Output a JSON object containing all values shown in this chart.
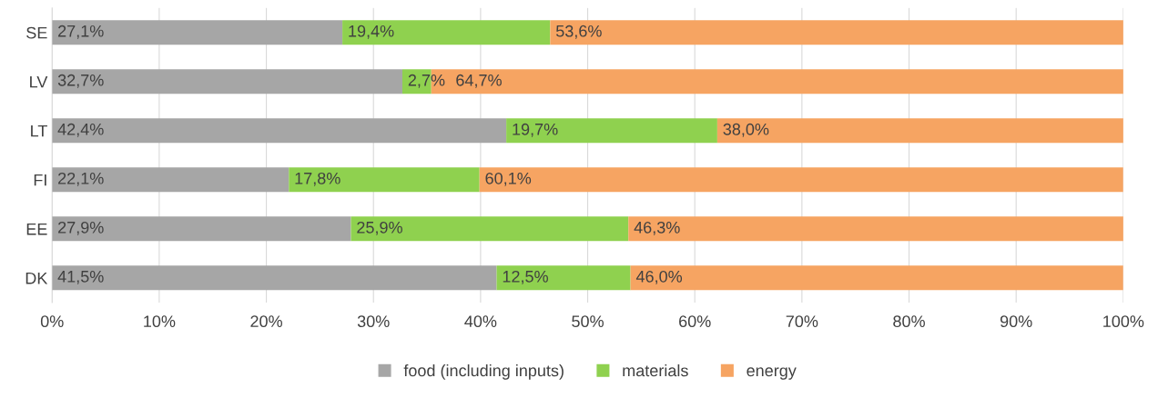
{
  "chart_data": {
    "type": "bar",
    "orientation": "horizontal",
    "stacked": true,
    "categories": [
      "SE",
      "LV",
      "LT",
      "FI",
      "EE",
      "DK"
    ],
    "series": [
      {
        "name": "food (including inputs)",
        "color": "#a6a6a6",
        "values": [
          27.1,
          32.7,
          42.4,
          22.1,
          27.9,
          41.5
        ],
        "value_labels": [
          "27,1%",
          "32,7%",
          "42,4%",
          "22,1%",
          "27,9%",
          "41,5%"
        ]
      },
      {
        "name": "materials",
        "color": "#8fd14f",
        "values": [
          19.4,
          2.7,
          19.7,
          17.8,
          25.9,
          12.5
        ],
        "value_labels": [
          "19,4%",
          "2,7%",
          "19,7%",
          "17,8%",
          "25,9%",
          "12,5%"
        ]
      },
      {
        "name": "energy",
        "color": "#f6a462",
        "values": [
          53.6,
          64.7,
          38.0,
          60.1,
          46.3,
          46.0
        ],
        "value_labels": [
          "53,6%",
          "64,7%",
          "38,0%",
          "60,1%",
          "46,3%",
          "46,0%"
        ]
      }
    ],
    "xlim": [
      0,
      100
    ],
    "xticks": [
      {
        "value": 0,
        "label": "0%"
      },
      {
        "value": 10,
        "label": "10%"
      },
      {
        "value": 20,
        "label": "20%"
      },
      {
        "value": 30,
        "label": "30%"
      },
      {
        "value": 40,
        "label": "40%"
      },
      {
        "value": 50,
        "label": "50%"
      },
      {
        "value": 60,
        "label": "60%"
      },
      {
        "value": 70,
        "label": "70%"
      },
      {
        "value": 80,
        "label": "80%"
      },
      {
        "value": 90,
        "label": "90%"
      },
      {
        "value": 100,
        "label": "100%"
      }
    ],
    "grid": "x",
    "legend": "bottom"
  }
}
